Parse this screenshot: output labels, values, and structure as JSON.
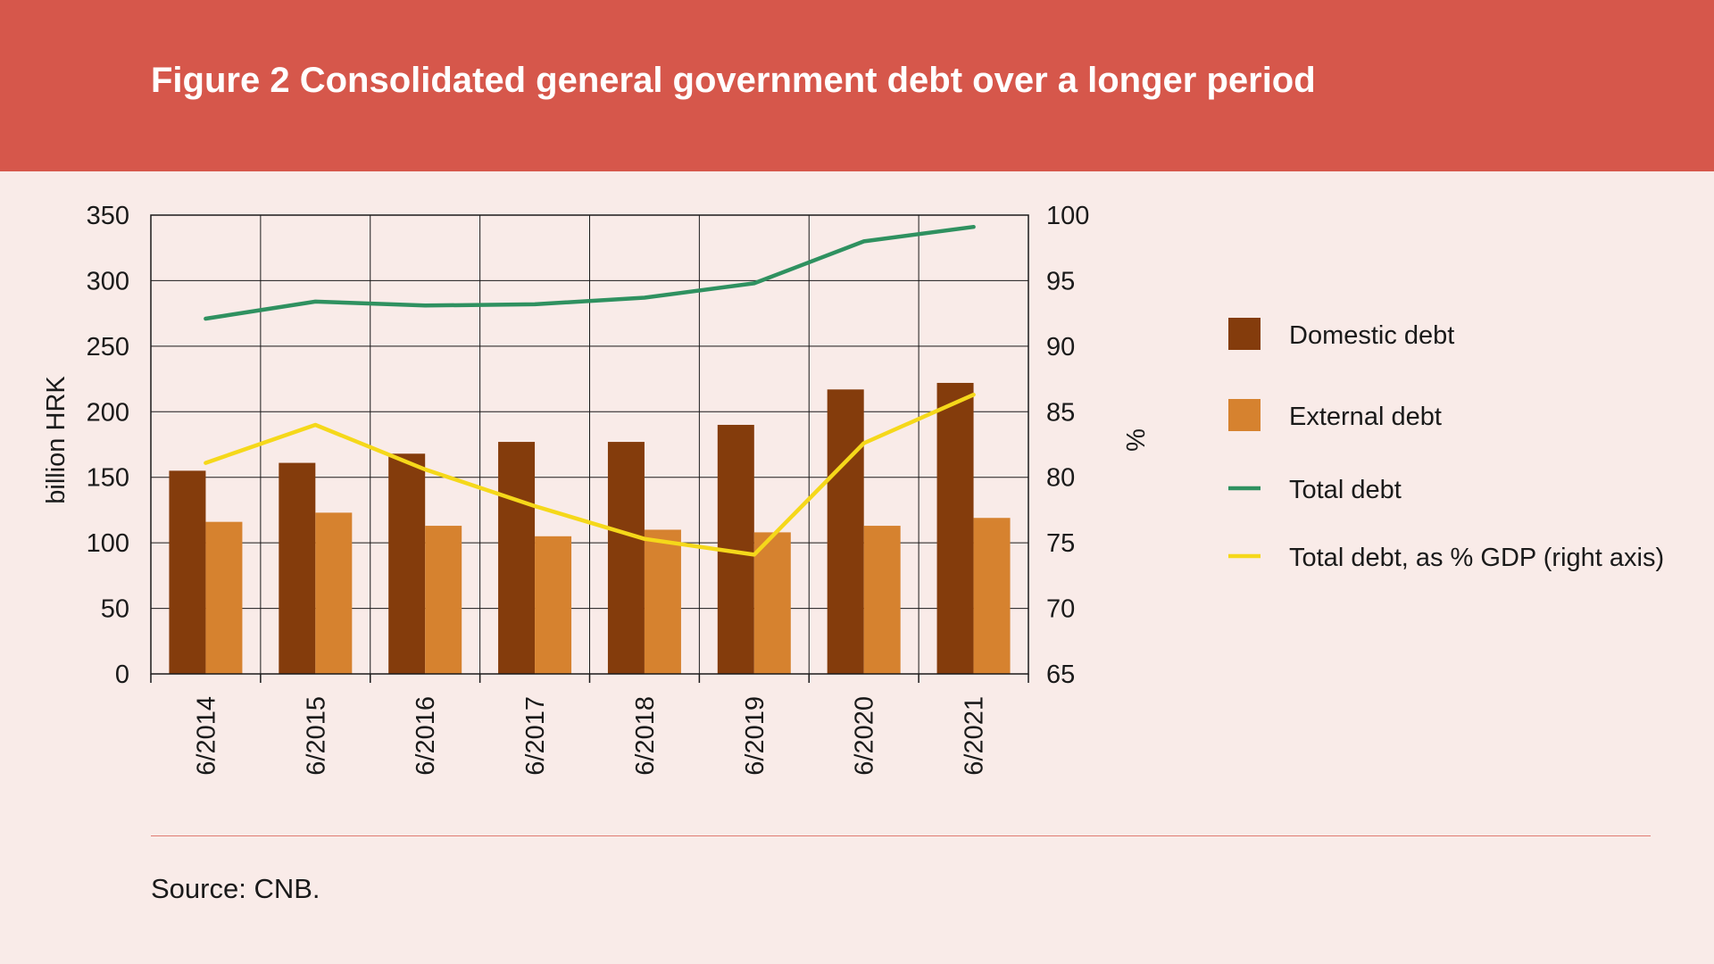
{
  "header": {
    "title": "Figure 2 Consolidated general government debt over a longer period"
  },
  "footer": {
    "source": "Source: CNB."
  },
  "colors": {
    "header_bg": "#d6574b",
    "page_bg": "#f9ebe8",
    "domestic": "#843c0c",
    "external": "#d6822f",
    "total": "#2f9160",
    "pct_gdp": "#f5d81a"
  },
  "chart_data": {
    "type": "bar",
    "title": "Figure 2 Consolidated general government debt over a longer period",
    "categories": [
      "6/2014",
      "6/2015",
      "6/2016",
      "6/2017",
      "6/2018",
      "6/2019",
      "6/2020",
      "6/2021"
    ],
    "ylabel": "billion HRK",
    "ylim": [
      0,
      350
    ],
    "yticks": [
      0,
      50,
      100,
      150,
      200,
      250,
      300,
      350
    ],
    "y2label": "%",
    "y2lim": [
      65,
      100
    ],
    "y2ticks": [
      65,
      70,
      75,
      80,
      85,
      90,
      95,
      100
    ],
    "grid": true,
    "legend_position": "right",
    "series": [
      {
        "name": "Domestic debt",
        "type": "bar",
        "axis": "left",
        "values": [
          155,
          161,
          168,
          177,
          177,
          190,
          217,
          222
        ]
      },
      {
        "name": "External debt",
        "type": "bar",
        "axis": "left",
        "values": [
          116,
          123,
          113,
          105,
          110,
          108,
          113,
          119
        ]
      },
      {
        "name": "Total debt",
        "type": "line",
        "axis": "left",
        "values": [
          271,
          284,
          281,
          282,
          287,
          298,
          330,
          341
        ]
      },
      {
        "name": "Total debt, as % GDP (right axis)",
        "type": "line",
        "axis": "right",
        "values": [
          81.1,
          84.0,
          80.6,
          77.8,
          75.3,
          74.1,
          82.6,
          86.3
        ]
      }
    ]
  }
}
